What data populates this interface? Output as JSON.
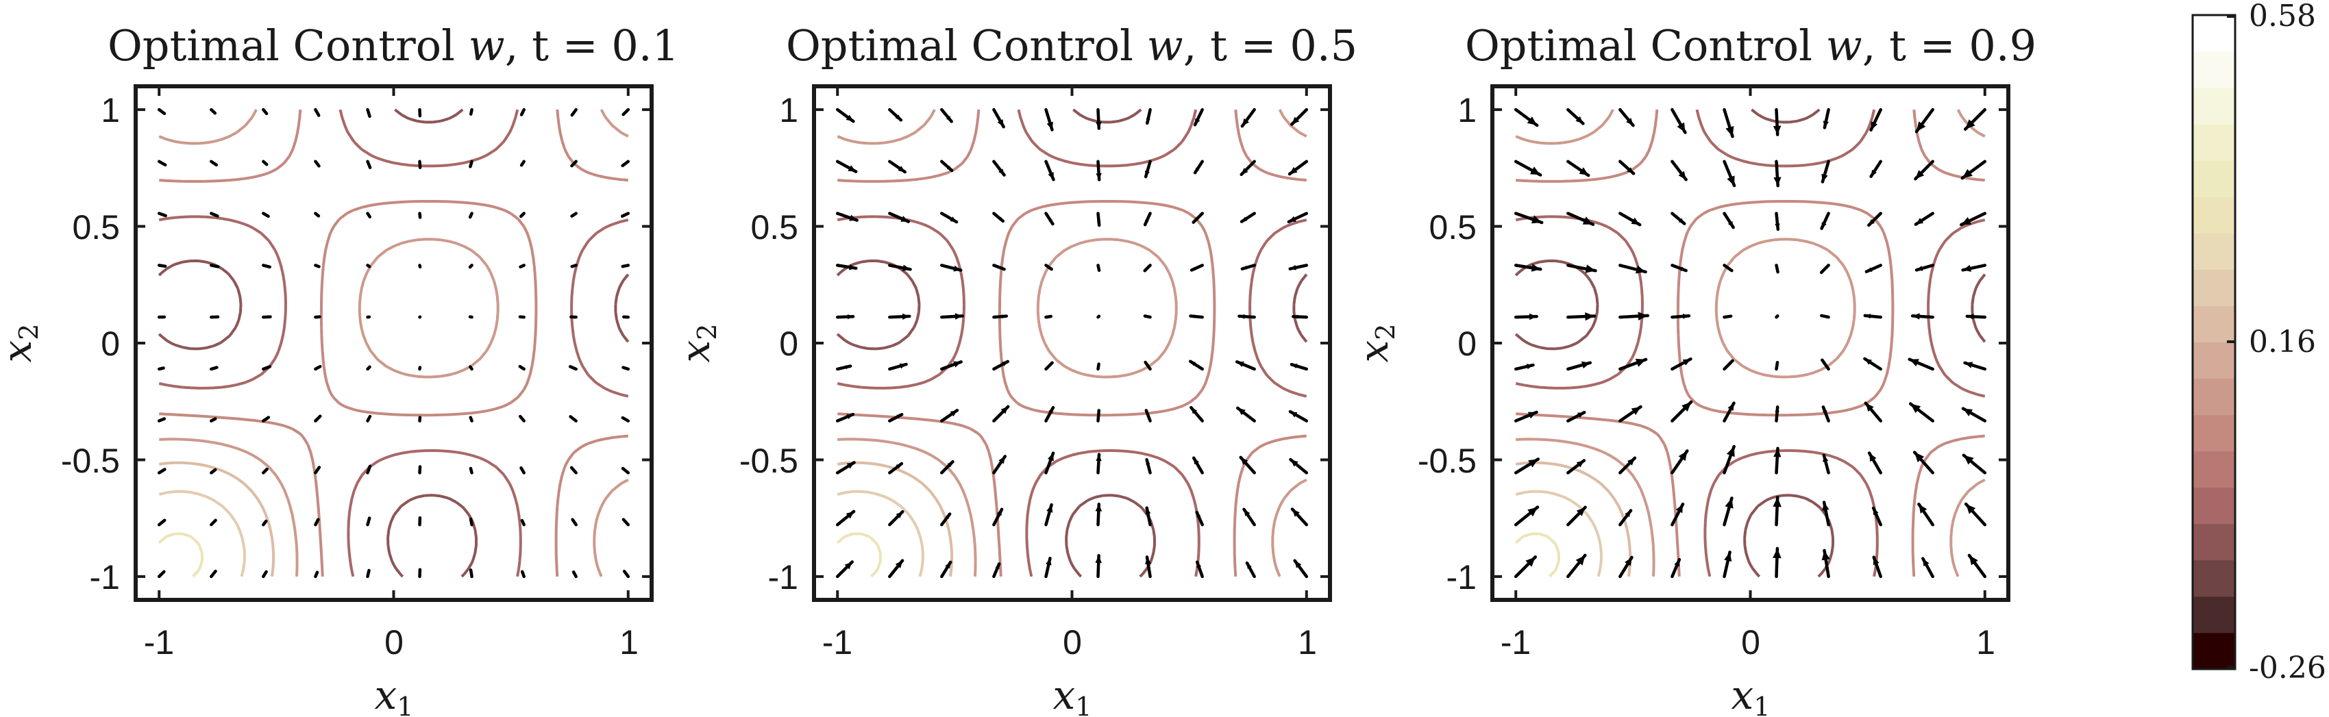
{
  "chart_data": [
    {
      "type": "quiver",
      "title": "Optimal Control ⃗w, t = 0.1",
      "t": 0.1,
      "xlabel": "x1",
      "ylabel": "x2",
      "xlim": [
        -1.1,
        1.1
      ],
      "ylim": [
        -1.1,
        1.1
      ],
      "xticks": [
        -1,
        0,
        1
      ],
      "yticks": [
        1,
        0.5,
        0,
        -0.5,
        -1
      ],
      "arrow_scale": 0.25,
      "contours": "state level sets over [-1,1]^2"
    },
    {
      "type": "quiver",
      "title": "Optimal Control ⃗w, t = 0.5",
      "t": 0.5,
      "xlabel": "x1",
      "ylabel": "x2",
      "xlim": [
        -1.1,
        1.1
      ],
      "ylim": [
        -1.1,
        1.1
      ],
      "xticks": [
        -1,
        0,
        1
      ],
      "yticks": [
        1,
        0.5,
        0,
        -0.5,
        -1
      ],
      "arrow_scale": 0.75,
      "contours": "state level sets over [-1,1]^2"
    },
    {
      "type": "quiver",
      "title": "Optimal Control ⃗w, t = 0.9",
      "t": 0.9,
      "xlabel": "x1",
      "ylabel": "x2",
      "xlim": [
        -1.1,
        1.1
      ],
      "ylim": [
        -1.1,
        1.1
      ],
      "xticks": [
        -1,
        0,
        1
      ],
      "yticks": [
        1,
        0.5,
        0,
        -0.5,
        -1
      ],
      "arrow_scale": 1.0,
      "contours": "state level sets over [-1,1]^2"
    }
  ],
  "panels": [
    {
      "title_pre": "Optimal Control ",
      "title_var": "w",
      "title_post": ", t = 0.1",
      "tick_x": [
        "-1",
        "0",
        "1"
      ],
      "tick_y": [
        "1",
        "0.5",
        "0",
        "-0.5",
        "-1"
      ],
      "xlabel": "x",
      "xlabel_sub": "1",
      "ylabel": "x",
      "ylabel_sub": "2"
    },
    {
      "title_pre": "Optimal Control ",
      "title_var": "w",
      "title_post": ", t = 0.5",
      "tick_x": [
        "-1",
        "0",
        "1"
      ],
      "tick_y": [
        "1",
        "0.5",
        "0",
        "-0.5",
        "-1"
      ],
      "xlabel": "x",
      "xlabel_sub": "1",
      "ylabel": "x",
      "ylabel_sub": "2"
    },
    {
      "title_pre": "Optimal Control ",
      "title_var": "w",
      "title_post": ", t = 0.9",
      "tick_x": [
        "-1",
        "0",
        "1"
      ],
      "tick_y": [
        "1",
        "0.5",
        "0",
        "-0.5",
        "-1"
      ],
      "xlabel": "x",
      "xlabel_sub": "1",
      "ylabel": "x",
      "ylabel_sub": "2"
    }
  ],
  "colorbar": {
    "min": -0.26,
    "mid": 0.16,
    "max": 0.58,
    "label_max": "0.58",
    "label_mid": "0.16",
    "label_min": "-0.26",
    "colors": [
      "#2a0000",
      "#4a2a2a",
      "#6e4444",
      "#8c5656",
      "#a86868",
      "#b87874",
      "#c48a80",
      "#cc9a8c",
      "#d4aa98",
      "#dcbca4",
      "#e2ccb0",
      "#e8dab6",
      "#ece4b8",
      "#eeeac0",
      "#f2f0cc",
      "#f6f6de",
      "#fafaf0",
      "#ffffff"
    ]
  }
}
